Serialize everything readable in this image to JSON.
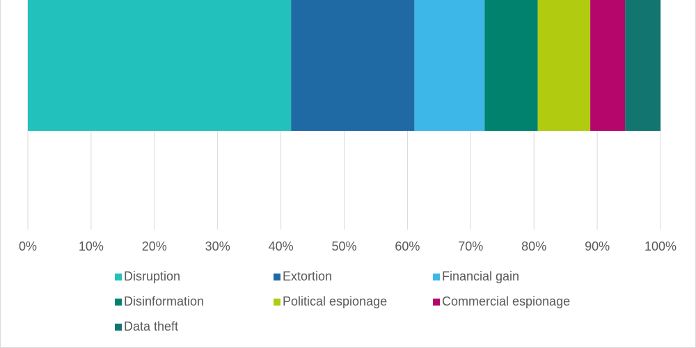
{
  "chart_data": {
    "type": "bar",
    "orientation": "horizontal",
    "stacked": true,
    "categories": [
      null
    ],
    "series": [
      {
        "name": "Disruption",
        "color": "#22c1bc",
        "values": [
          41.6
        ]
      },
      {
        "name": "Extortion",
        "color": "#1f6aa5",
        "values": [
          19.5
        ]
      },
      {
        "name": "Financial gain",
        "color": "#3db7e8",
        "values": [
          11.1
        ]
      },
      {
        "name": "Disinformation",
        "color": "#00826f",
        "values": [
          8.4
        ]
      },
      {
        "name": "Political espionage",
        "color": "#b0cb10",
        "values": [
          8.3
        ]
      },
      {
        "name": "Commercial espionage",
        "color": "#b5076b",
        "values": [
          5.5
        ]
      },
      {
        "name": "Data theft",
        "color": "#127570",
        "values": [
          5.6
        ]
      }
    ],
    "xlim": [
      0,
      100
    ],
    "xticks": [
      {
        "value": 0,
        "label": "0%"
      },
      {
        "value": 10,
        "label": "10%"
      },
      {
        "value": 20,
        "label": "20%"
      },
      {
        "value": 30,
        "label": "30%"
      },
      {
        "value": 40,
        "label": "40%"
      },
      {
        "value": 50,
        "label": "50%"
      },
      {
        "value": 60,
        "label": "60%"
      },
      {
        "value": 70,
        "label": "70%"
      },
      {
        "value": 80,
        "label": "80%"
      },
      {
        "value": 90,
        "label": "90%"
      },
      {
        "value": 100,
        "label": "100%"
      }
    ],
    "grid": true,
    "legend": "bottom"
  }
}
